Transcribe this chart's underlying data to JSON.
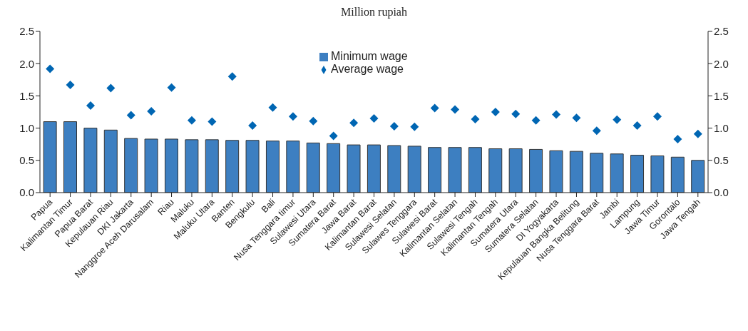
{
  "chart_data": {
    "type": "bar",
    "title": "Million rupiah",
    "categories": [
      "Papua",
      "Kalimantan Timur",
      "Papua Barat",
      "Kepulauan Riau",
      "DKI Jakarta",
      "Nanggroe Aceh Darusalam",
      "Riau",
      "Maluku",
      "Maluku Utara",
      "Banten",
      "Bengkulu",
      "Bali",
      "Nusa Tenggara timur",
      "Sulawesi Utara",
      "Sumatera Barat",
      "Jawa Barat",
      "Kalimantan Barat",
      "Sulawesi Selatan",
      "Sulawes Tenggara",
      "Sulawesi Barat",
      "Kalimantan Selatan",
      "Sulawesi Tengah",
      "Kalimantan Tengah",
      "Sumatera Utara",
      "Sumatera Selatan",
      "DI Yogyakarta",
      "Kepulauan Bangka Belitung",
      "Nusa Tenggara Barat",
      "Jambi",
      "Lampung",
      "Jawa Timur",
      "Gorontalo",
      "Jawa Tengah"
    ],
    "series": [
      {
        "name": "Minimum wage",
        "color": "#3d7fc1",
        "values": [
          1.1,
          1.1,
          1.0,
          0.97,
          0.84,
          0.83,
          0.83,
          0.82,
          0.82,
          0.81,
          0.81,
          0.8,
          0.8,
          0.77,
          0.76,
          0.74,
          0.74,
          0.73,
          0.72,
          0.7,
          0.7,
          0.7,
          0.68,
          0.68,
          0.67,
          0.65,
          0.64,
          0.61,
          0.6,
          0.58,
          0.57,
          0.55,
          0.5
        ]
      },
      {
        "name": "Average wage",
        "type": "scatter",
        "color": "#0066b3",
        "marker": "diamond",
        "values": [
          1.92,
          1.67,
          1.35,
          1.62,
          1.2,
          1.26,
          1.63,
          1.12,
          1.1,
          1.8,
          1.04,
          1.32,
          1.18,
          1.11,
          0.88,
          1.08,
          1.15,
          1.03,
          1.02,
          1.31,
          1.29,
          1.14,
          1.25,
          1.22,
          1.12,
          1.21,
          1.16,
          0.96,
          1.13,
          1.04,
          1.18,
          0.83,
          0.91
        ]
      }
    ],
    "ylim": [
      0,
      2.5
    ],
    "yticks": [
      {
        "value": 0,
        "label": "0.0"
      },
      {
        "value": 0.5,
        "label": "0.5"
      },
      {
        "value": 1,
        "label": "1.0"
      },
      {
        "value": 1.5,
        "label": "1.5"
      },
      {
        "value": 2,
        "label": "2.0"
      },
      {
        "value": 2.5,
        "label": "2.5"
      }
    ],
    "y2lim": [
      0,
      2.5
    ],
    "y2ticks": [
      {
        "value": 0,
        "label": "0.0"
      },
      {
        "value": 0.5,
        "label": "0.5"
      },
      {
        "value": 1,
        "label": "1.0"
      },
      {
        "value": 1.5,
        "label": "1.5"
      },
      {
        "value": 2,
        "label": "2.0"
      },
      {
        "value": 2.5,
        "label": "2.5"
      }
    ],
    "legend": "top",
    "grid": false
  }
}
